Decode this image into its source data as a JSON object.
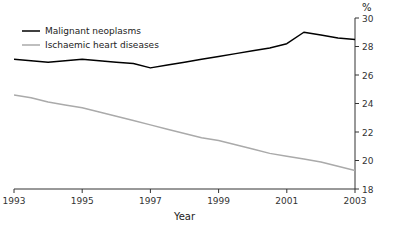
{
  "chart_data": {
    "type": "line",
    "xlabel": "Year",
    "ylabel": "%",
    "x": [
      1993,
      1993.5,
      1994,
      1994.5,
      1995,
      1995.5,
      1996,
      1996.5,
      1997,
      1997.5,
      1998,
      1998.5,
      1999,
      1999.5,
      2000,
      2000.5,
      2001,
      2001.5,
      2002,
      2002.5,
      2003
    ],
    "series": [
      {
        "name": "Malignant neoplasms",
        "color": "#000000",
        "values": [
          27.1,
          27.0,
          26.9,
          27.0,
          27.1,
          27.0,
          26.9,
          26.8,
          26.5,
          26.7,
          26.9,
          27.1,
          27.3,
          27.5,
          27.7,
          27.9,
          28.2,
          29.0,
          28.8,
          28.6,
          28.5
        ]
      },
      {
        "name": "Ischaemic heart diseases",
        "color": "#aaaaaa",
        "values": [
          24.6,
          24.4,
          24.1,
          23.9,
          23.7,
          23.4,
          23.1,
          22.8,
          22.5,
          22.2,
          21.9,
          21.6,
          21.4,
          21.1,
          20.8,
          20.5,
          20.3,
          20.1,
          19.9,
          19.6,
          19.3
        ]
      }
    ],
    "xlim": [
      1993,
      2003
    ],
    "xticks": [
      1993,
      1995,
      1997,
      1999,
      2001,
      2003
    ],
    "ylim": [
      18,
      30
    ],
    "yticks": [
      18,
      20,
      22,
      24,
      26,
      28,
      30
    ],
    "grid": false,
    "legend": "upper left"
  }
}
